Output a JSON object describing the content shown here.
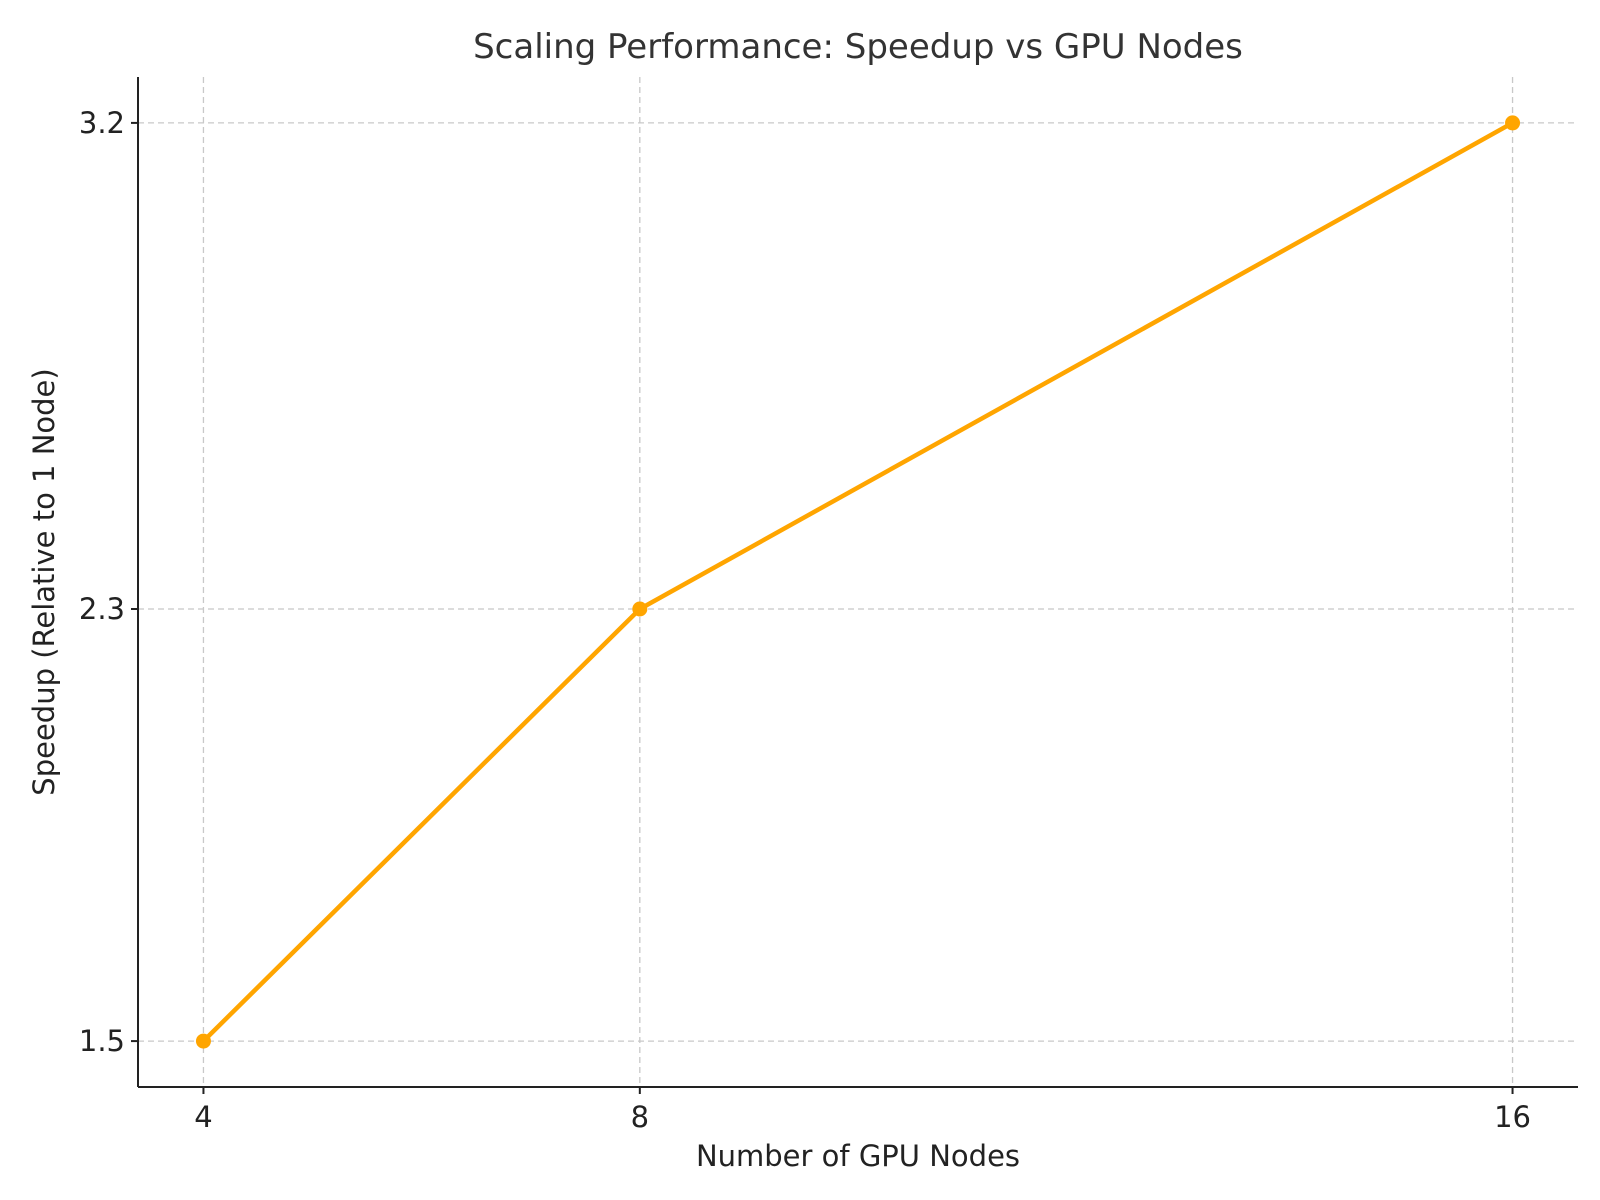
{
  "chart_data": {
    "type": "line",
    "title": "Scaling Performance: Speedup vs GPU Nodes",
    "xlabel": "Number of GPU Nodes",
    "ylabel": "Speedup (Relative to 1 Node)",
    "x": [
      4,
      8,
      16
    ],
    "x_tick_labels": [
      "4",
      "8",
      "16"
    ],
    "y_ticks": [
      1.5,
      2.3,
      3.2
    ],
    "y_tick_labels": [
      "1.5",
      "2.3",
      "3.2"
    ],
    "series": [
      {
        "values": [
          1.5,
          2.3,
          3.2
        ],
        "color": "#FFA500"
      }
    ],
    "xlim": [
      3.4,
      16.6
    ],
    "ylim": [
      1.415,
      3.285
    ],
    "grid": true,
    "legend": "none"
  }
}
